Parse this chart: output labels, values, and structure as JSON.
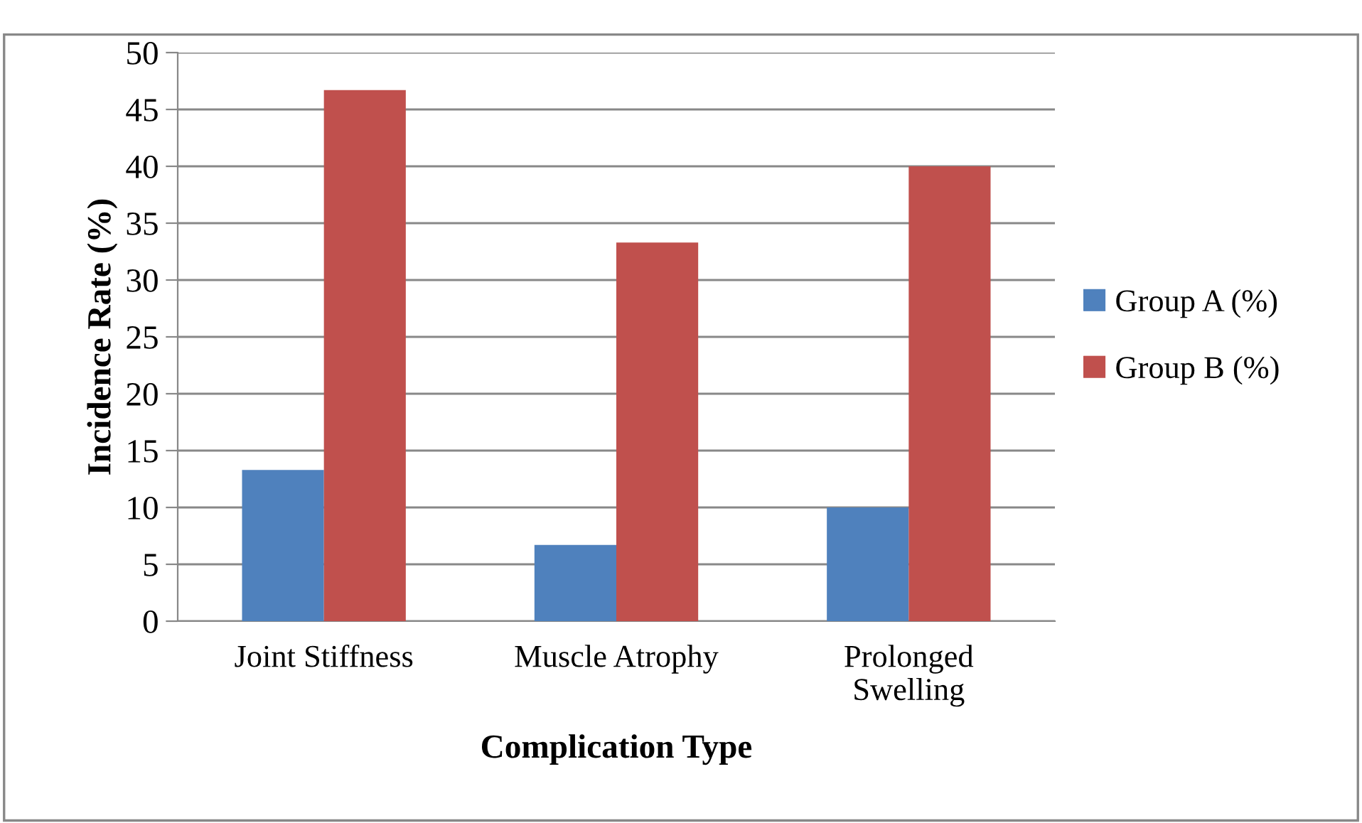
{
  "chart_data": {
    "type": "bar",
    "xlabel": "Complication Type",
    "ylabel": "Incidence Rate (%)",
    "categories": [
      "Joint Stiffness",
      "Muscle Atrophy",
      "Prolonged\nSwelling"
    ],
    "series": [
      {
        "name": "Group A (%)",
        "color": "#4f81bd",
        "values": [
          13.3,
          6.7,
          10
        ]
      },
      {
        "name": "Group B (%)",
        "color": "#c0504d",
        "values": [
          46.7,
          33.3,
          40
        ]
      }
    ],
    "ylim": [
      0,
      50
    ],
    "yticks": [
      0,
      5,
      10,
      15,
      20,
      25,
      30,
      35,
      40,
      45,
      50
    ],
    "grid": "y",
    "legend": "right"
  }
}
